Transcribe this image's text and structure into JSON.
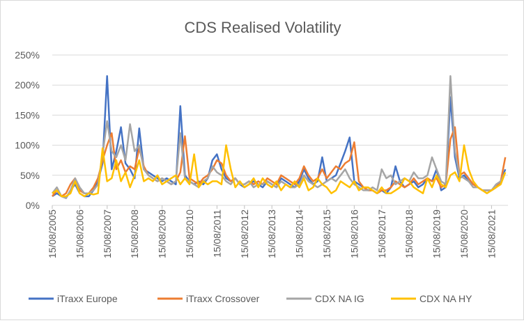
{
  "chart_data": {
    "type": "line",
    "title": "CDS Realised Volatility",
    "xlabel": "",
    "ylabel": "",
    "ylim": [
      0,
      250
    ],
    "y_unit": "%",
    "y_ticks": [
      "0%",
      "50%",
      "100%",
      "150%",
      "200%",
      "250%"
    ],
    "x_ticks": [
      "15/08/2005",
      "15/08/2006",
      "15/08/2007",
      "15/08/2008",
      "15/08/2009",
      "15/08/2010",
      "15/08/2011",
      "15/08/2012",
      "15/08/2013",
      "15/08/2014",
      "15/08/2015",
      "15/08/2016",
      "15/08/2017",
      "15/08/2018",
      "15/08/2019",
      "15/08/2020",
      "15/08/2021"
    ],
    "x_start": "2005-08-15",
    "x_step_months": 2,
    "grid": "horizontal",
    "legend_position": "bottom",
    "series": [
      {
        "name": "iTraxx Europe",
        "color": "#4472C4",
        "values": [
          15,
          20,
          15,
          12,
          25,
          35,
          20,
          15,
          15,
          25,
          40,
          70,
          215,
          60,
          90,
          130,
          70,
          60,
          45,
          128,
          60,
          55,
          50,
          45,
          40,
          45,
          40,
          35,
          165,
          50,
          40,
          35,
          40,
          35,
          45,
          75,
          85,
          60,
          45,
          40,
          45,
          35,
          30,
          35,
          40,
          35,
          30,
          40,
          35,
          30,
          45,
          40,
          35,
          30,
          40,
          60,
          45,
          35,
          40,
          80,
          40,
          45,
          50,
          70,
          90,
          113,
          40,
          35,
          30,
          25,
          25,
          20,
          25,
          20,
          30,
          65,
          40,
          30,
          35,
          40,
          30,
          35,
          45,
          40,
          60,
          25,
          30,
          180,
          80,
          45,
          50,
          40,
          35,
          30,
          25,
          25,
          25,
          30,
          40,
          60
        ]
      },
      {
        "name": "iTraxx Crossover",
        "color": "#ED7D31",
        "values": [
          15,
          25,
          15,
          20,
          35,
          45,
          25,
          20,
          20,
          30,
          45,
          75,
          100,
          120,
          60,
          75,
          55,
          65,
          60,
          95,
          65,
          50,
          45,
          40,
          45,
          40,
          35,
          40,
          55,
          115,
          45,
          40,
          35,
          45,
          50,
          60,
          75,
          70,
          50,
          40,
          45,
          35,
          35,
          40,
          35,
          40,
          35,
          45,
          40,
          35,
          50,
          45,
          40,
          35,
          45,
          65,
          50,
          40,
          45,
          60,
          45,
          55,
          65,
          60,
          70,
          75,
          105,
          40,
          30,
          25,
          25,
          20,
          25,
          25,
          30,
          40,
          35,
          30,
          35,
          45,
          35,
          40,
          45,
          40,
          45,
          30,
          35,
          110,
          130,
          50,
          55,
          45,
          35,
          30,
          25,
          25,
          25,
          30,
          40,
          80
        ]
      },
      {
        "name": "CDX NA IG",
        "color": "#A5A5A5",
        "values": [
          20,
          30,
          15,
          12,
          25,
          45,
          30,
          20,
          20,
          25,
          35,
          85,
          140,
          90,
          80,
          100,
          75,
          135,
          90,
          100,
          60,
          50,
          45,
          40,
          45,
          40,
          35,
          40,
          120,
          45,
          40,
          35,
          30,
          40,
          45,
          65,
          55,
          50,
          40,
          35,
          45,
          35,
          35,
          40,
          30,
          35,
          35,
          40,
          35,
          30,
          40,
          35,
          30,
          30,
          35,
          50,
          40,
          35,
          30,
          35,
          40,
          45,
          40,
          50,
          60,
          45,
          35,
          30,
          25,
          25,
          30,
          25,
          60,
          45,
          50,
          35,
          40,
          45,
          40,
          55,
          45,
          45,
          50,
          80,
          60,
          40,
          35,
          215,
          90,
          50,
          45,
          40,
          30,
          30,
          25,
          25,
          25,
          35,
          40,
          55
        ]
      },
      {
        "name": "CDX NA HY",
        "color": "#FFC000",
        "values": [
          20,
          25,
          15,
          15,
          20,
          40,
          20,
          15,
          20,
          18,
          20,
          95,
          40,
          45,
          75,
          40,
          55,
          30,
          50,
          75,
          40,
          45,
          40,
          50,
          35,
          40,
          45,
          50,
          35,
          45,
          35,
          85,
          30,
          40,
          35,
          40,
          40,
          35,
          100,
          60,
          30,
          40,
          30,
          35,
          45,
          30,
          45,
          35,
          30,
          40,
          25,
          35,
          30,
          40,
          30,
          45,
          25,
          30,
          45,
          35,
          30,
          20,
          25,
          40,
          35,
          30,
          40,
          25,
          30,
          30,
          25,
          20,
          30,
          20,
          20,
          25,
          30,
          45,
          40,
          30,
          25,
          20,
          45,
          30,
          50,
          35,
          30,
          50,
          55,
          40,
          100,
          60,
          40,
          30,
          25,
          20,
          25,
          30,
          35,
          55
        ]
      }
    ]
  }
}
